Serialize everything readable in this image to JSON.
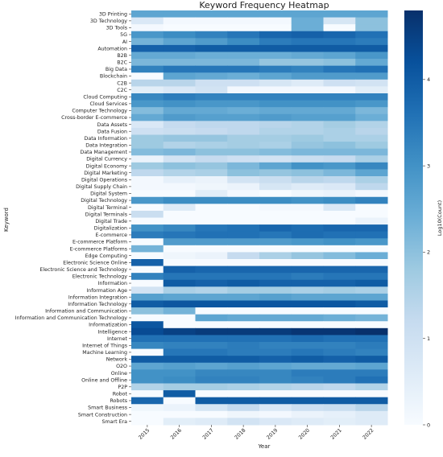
{
  "chart_data": {
    "type": "heatmap",
    "title": "Keyword Frequency Heatmap",
    "xlabel": "Year",
    "ylabel": "Keyword",
    "colorbar_label": "Log10(Count)",
    "colorbar_ticks": [
      0,
      1,
      2,
      3,
      4
    ],
    "vlim": [
      0,
      4.8
    ],
    "colormap": "Blues",
    "colors": {
      "low": "#f7fbff",
      "high": "#08306b"
    },
    "x": [
      "2015",
      "2016",
      "2017",
      "2018",
      "2019",
      "2020",
      "2021",
      "2022"
    ],
    "y": [
      "3D Printing",
      "3D Technology",
      "3D Tools",
      "5G",
      "AI",
      "Automation",
      "B2B",
      "B2C",
      "Big Data",
      "Blockchain",
      "C2B",
      "C2C",
      "Cloud Computing",
      "Cloud Services",
      "Computer Technology",
      "Cross-border E-commerce",
      "Data Assets",
      "Data Fusion",
      "Data Information",
      "Data Integration",
      "Data Management",
      "Digital Currency",
      "Digital Economy",
      "Digital Marketing",
      "Digital Operations",
      "Digital Supply Chain",
      "Digital System",
      "Digital Technology",
      "Digital Terminal",
      "Digital Terminals",
      "Digital Trade",
      "Digitalization",
      "E-commerce",
      "E-commerce Platform",
      "E-commerce Platforms",
      "Edge Computing",
      "Electronic Science Online",
      "Electronic Science and Technology",
      "Electronic Technology",
      "Information",
      "Information Age",
      "Information Integration",
      "Information Technology",
      "Information and Communication",
      "Information and Communication Technology",
      "Informatization",
      "Intelligence",
      "Internet",
      "Internet of Things",
      "Machine Learning",
      "Network",
      "O2O",
      "Online",
      "Online and Offline",
      "P2P",
      "Robot",
      "Robots",
      "Smart Business",
      "Smart Construction",
      "Smart Era"
    ],
    "values": [
      [
        2.6,
        2.6,
        2.6,
        2.6,
        2.6,
        2.6,
        2.6,
        2.6
      ],
      [
        0.7,
        0.1,
        0.1,
        0.1,
        0.1,
        2.4,
        0.8,
        2.0
      ],
      [
        0.1,
        0.0,
        0.0,
        0.0,
        0.0,
        2.4,
        0.0,
        2.0
      ],
      [
        2.9,
        3.1,
        3.3,
        3.5,
        3.8,
        3.9,
        3.8,
        3.6
      ],
      [
        2.3,
        2.6,
        2.8,
        3.1,
        3.4,
        3.5,
        3.5,
        3.4
      ],
      [
        3.9,
        3.9,
        4.0,
        4.0,
        4.0,
        4.0,
        4.0,
        4.0
      ],
      [
        2.5,
        2.5,
        2.4,
        2.4,
        2.4,
        2.5,
        2.6,
        2.9
      ],
      [
        2.2,
        2.2,
        2.2,
        2.2,
        1.9,
        1.9,
        2.0,
        2.5
      ],
      [
        3.3,
        3.5,
        3.5,
        3.5,
        3.4,
        3.3,
        3.5,
        3.6
      ],
      [
        0.0,
        2.6,
        2.5,
        2.4,
        2.6,
        2.8,
        2.8,
        2.8
      ],
      [
        1.4,
        1.4,
        1.0,
        1.0,
        0.8,
        0.6,
        1.0,
        0.9
      ],
      [
        0.5,
        0.7,
        0.9,
        0.1,
        0.1,
        0.1,
        0.1,
        0.5
      ],
      [
        3.2,
        3.4,
        3.3,
        3.3,
        3.3,
        3.3,
        3.3,
        3.3
      ],
      [
        2.9,
        3.0,
        2.9,
        2.9,
        3.0,
        3.0,
        3.0,
        2.9
      ],
      [
        2.1,
        2.5,
        2.5,
        2.4,
        2.5,
        2.5,
        2.5,
        2.2
      ],
      [
        2.5,
        2.8,
        2.7,
        2.7,
        2.8,
        2.7,
        2.7,
        2.4
      ],
      [
        0.7,
        1.2,
        1.3,
        1.3,
        1.4,
        1.5,
        1.7,
        1.5
      ],
      [
        1.0,
        1.1,
        1.2,
        1.3,
        1.5,
        1.5,
        1.6,
        1.4
      ],
      [
        1.8,
        1.9,
        1.9,
        1.7,
        1.7,
        1.8,
        1.6,
        1.6
      ],
      [
        1.8,
        1.5,
        1.6,
        1.7,
        1.6,
        1.9,
        2.0,
        1.8
      ],
      [
        2.1,
        2.2,
        2.0,
        2.0,
        2.1,
        2.2,
        2.2,
        2.2
      ],
      [
        0.3,
        0.9,
        1.2,
        1.0,
        0.9,
        1.1,
        1.2,
        1.6
      ],
      [
        1.8,
        2.0,
        1.9,
        2.2,
        2.6,
        3.0,
        2.9,
        3.2
      ],
      [
        1.3,
        1.5,
        1.6,
        2.0,
        1.9,
        2.0,
        2.2,
        2.6
      ],
      [
        0.1,
        0.4,
        0.3,
        0.9,
        1.1,
        1.4,
        1.3,
        1.6
      ],
      [
        0.1,
        0.1,
        0.2,
        0.3,
        0.8,
        0.6,
        0.7,
        1.3
      ],
      [
        0.0,
        0.0,
        0.5,
        0.1,
        0.0,
        0.2,
        0.3,
        0.1
      ],
      [
        2.9,
        3.1,
        3.1,
        3.1,
        3.1,
        3.0,
        3.1,
        3.3
      ],
      [
        0.0,
        0.6,
        0.0,
        0.0,
        0.1,
        0.1,
        0.7,
        0.0
      ],
      [
        1.1,
        0.0,
        0.0,
        0.0,
        0.0,
        0.0,
        0.0,
        0.0
      ],
      [
        0.0,
        0.0,
        0.0,
        0.0,
        0.0,
        0.0,
        0.0,
        0.3
      ],
      [
        3.0,
        3.2,
        3.5,
        3.6,
        3.8,
        3.7,
        3.8,
        3.8
      ],
      [
        3.4,
        3.5,
        3.6,
        3.6,
        3.5,
        3.7,
        3.6,
        3.6
      ],
      [
        0.0,
        2.8,
        2.8,
        2.8,
        2.8,
        2.9,
        3.0,
        2.9
      ],
      [
        2.3,
        0.0,
        0.0,
        0.0,
        0.0,
        0.0,
        0.0,
        0.0
      ],
      [
        0.0,
        0.2,
        0.3,
        1.2,
        1.6,
        1.9,
        2.1,
        2.4
      ],
      [
        3.9,
        0.0,
        0.0,
        0.0,
        0.0,
        0.0,
        0.0,
        0.0
      ],
      [
        0.0,
        3.9,
        3.8,
        3.8,
        3.8,
        3.8,
        3.8,
        3.8
      ],
      [
        3.3,
        3.5,
        3.5,
        3.5,
        3.5,
        3.4,
        3.5,
        3.5
      ],
      [
        0.0,
        4.0,
        3.9,
        4.0,
        3.9,
        3.9,
        3.9,
        4.0
      ],
      [
        0.9,
        1.6,
        1.5,
        1.7,
        1.7,
        1.6,
        1.7,
        1.6
      ],
      [
        2.7,
        2.6,
        2.6,
        2.6,
        2.7,
        2.6,
        2.6,
        2.6
      ],
      [
        4.0,
        4.1,
        4.1,
        4.1,
        4.1,
        4.1,
        4.1,
        4.0
      ],
      [
        2.0,
        2.3,
        0.0,
        0.0,
        0.0,
        0.0,
        0.0,
        0.0
      ],
      [
        0.0,
        0.0,
        2.6,
        2.5,
        2.5,
        2.5,
        2.4,
        2.3
      ],
      [
        4.1,
        0.0,
        0.0,
        0.0,
        0.0,
        0.0,
        0.0,
        0.0
      ],
      [
        4.3,
        4.5,
        4.6,
        4.6,
        4.6,
        4.7,
        4.7,
        4.8
      ],
      [
        3.6,
        3.6,
        3.6,
        3.6,
        3.6,
        3.7,
        3.6,
        3.6
      ],
      [
        3.2,
        3.3,
        3.3,
        3.4,
        3.3,
        3.3,
        3.3,
        3.4
      ],
      [
        0.0,
        3.5,
        3.5,
        3.4,
        3.4,
        3.5,
        3.4,
        3.3
      ],
      [
        4.0,
        4.0,
        4.0,
        4.0,
        3.9,
        4.0,
        3.9,
        4.0
      ],
      [
        2.6,
        2.7,
        2.6,
        2.7,
        2.6,
        2.5,
        2.5,
        2.6
      ],
      [
        3.0,
        3.0,
        3.2,
        3.2,
        3.2,
        3.4,
        3.4,
        3.4
      ],
      [
        3.0,
        3.1,
        3.3,
        3.3,
        3.2,
        3.3,
        3.4,
        3.6
      ],
      [
        1.5,
        1.7,
        1.7,
        1.6,
        1.5,
        1.4,
        1.3,
        1.5
      ],
      [
        0.0,
        4.0,
        0.0,
        0.0,
        0.0,
        0.0,
        0.0,
        0.0
      ],
      [
        3.8,
        0.0,
        4.0,
        4.0,
        4.0,
        4.0,
        4.0,
        4.0
      ],
      [
        0.2,
        0.3,
        0.8,
        1.2,
        0.7,
        1.0,
        1.1,
        1.4
      ],
      [
        0.0,
        0.0,
        0.0,
        0.2,
        0.1,
        0.3,
        0.4,
        0.6
      ],
      [
        0.0,
        0.5,
        0.6,
        0.9,
        0.7,
        0.6,
        0.5,
        0.6
      ]
    ]
  }
}
